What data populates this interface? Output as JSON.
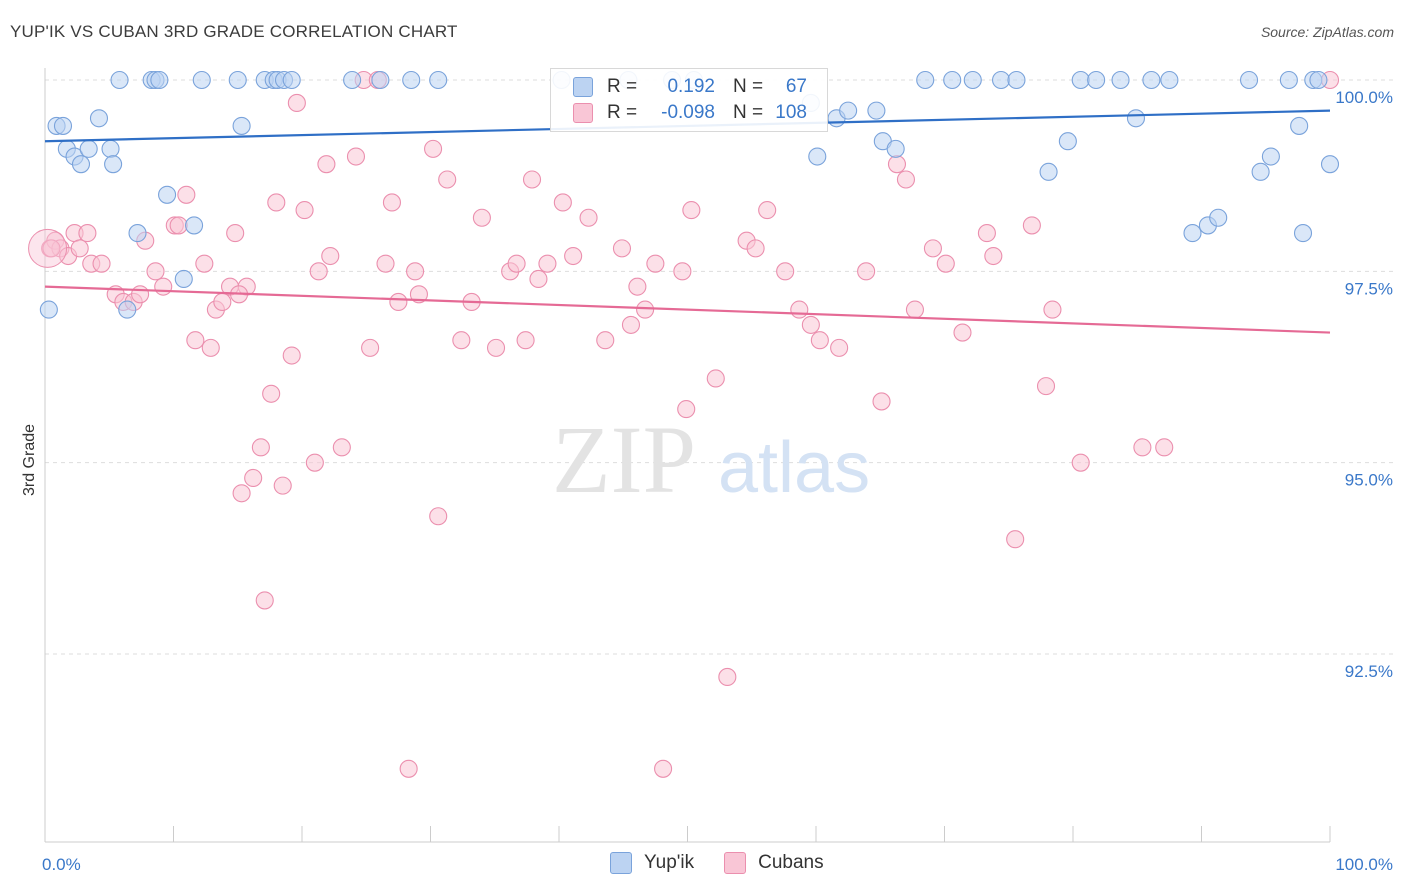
{
  "title": "YUP'IK VS CUBAN 3RD GRADE CORRELATION CHART",
  "source": "Source: ZipAtlas.com",
  "watermark": {
    "zip": "ZIP",
    "atlas": "atlas"
  },
  "legend_stats": {
    "rows": [
      {
        "r_label": "R =",
        "r_value": "0.192",
        "n_label": "N =",
        "n_value": "67"
      },
      {
        "r_label": "R =",
        "r_value": "-0.098",
        "n_label": "N =",
        "n_value": "108"
      }
    ]
  },
  "bottom_legend": [
    "Yup'ik",
    "Cubans"
  ],
  "colors": {
    "blue_fill": "#bcd3f2",
    "blue_stroke": "#7aa3db",
    "blue_line": "#2f6fc6",
    "pink_fill": "#f9c6d6",
    "pink_stroke": "#eb8fae",
    "pink_line": "#e56a95",
    "tick_color": "#3a78c9"
  },
  "chart_data": {
    "type": "scatter",
    "title": "YUP'IK VS CUBAN 3RD GRADE CORRELATION CHART",
    "xlabel": "",
    "ylabel": "3rd Grade",
    "xlim": [
      0,
      100
    ],
    "ylim": [
      90.0,
      101.0
    ],
    "x_tick_labels": [
      {
        "value": 0,
        "label": "0.0%"
      },
      {
        "value": 100,
        "label": "100.0%"
      }
    ],
    "y_ticks": [
      {
        "value": 92.5,
        "label": "92.5%"
      },
      {
        "value": 95.0,
        "label": "95.0%"
      },
      {
        "value": 97.5,
        "label": "97.5%"
      },
      {
        "value": 100.0,
        "label": "100.0%"
      }
    ],
    "grid": "horizontal dashed",
    "legend_position": "top-center",
    "series": [
      {
        "name": "Yup'ik",
        "trend": {
          "x": [
            0,
            100
          ],
          "y": [
            99.2,
            99.6
          ]
        },
        "points": [
          [
            0.3,
            97.0
          ],
          [
            0.9,
            99.4
          ],
          [
            1.4,
            99.4
          ],
          [
            1.7,
            99.1
          ],
          [
            2.3,
            99.0
          ],
          [
            2.8,
            98.9
          ],
          [
            3.4,
            99.1
          ],
          [
            4.2,
            99.5
          ],
          [
            5.1,
            99.1
          ],
          [
            5.3,
            98.9
          ],
          [
            5.8,
            100.0
          ],
          [
            6.4,
            97.0
          ],
          [
            7.2,
            98.0
          ],
          [
            8.3,
            100.0
          ],
          [
            8.6,
            100.0
          ],
          [
            8.9,
            100.0
          ],
          [
            9.5,
            98.5
          ],
          [
            10.8,
            97.4
          ],
          [
            11.6,
            98.1
          ],
          [
            12.2,
            100.0
          ],
          [
            15.0,
            100.0
          ],
          [
            15.3,
            99.4
          ],
          [
            17.1,
            100.0
          ],
          [
            17.8,
            100.0
          ],
          [
            18.1,
            100.0
          ],
          [
            18.6,
            100.0
          ],
          [
            19.2,
            100.0
          ],
          [
            23.9,
            100.0
          ],
          [
            26.1,
            100.0
          ],
          [
            28.5,
            100.0
          ],
          [
            30.6,
            100.0
          ],
          [
            40.2,
            100.0
          ],
          [
            45.4,
            100.0
          ],
          [
            48.8,
            100.0
          ],
          [
            50.5,
            100.0
          ],
          [
            59.6,
            99.7
          ],
          [
            60.1,
            99.0
          ],
          [
            61.6,
            99.5
          ],
          [
            62.5,
            99.6
          ],
          [
            64.7,
            99.6
          ],
          [
            65.2,
            99.2
          ],
          [
            66.2,
            99.1
          ],
          [
            68.5,
            100.0
          ],
          [
            70.6,
            100.0
          ],
          [
            72.2,
            100.0
          ],
          [
            74.4,
            100.0
          ],
          [
            75.6,
            100.0
          ],
          [
            78.1,
            98.8
          ],
          [
            79.6,
            99.2
          ],
          [
            80.6,
            100.0
          ],
          [
            81.8,
            100.0
          ],
          [
            83.7,
            100.0
          ],
          [
            84.9,
            99.5
          ],
          [
            86.1,
            100.0
          ],
          [
            87.5,
            100.0
          ],
          [
            89.3,
            98.0
          ],
          [
            90.5,
            98.1
          ],
          [
            91.3,
            98.2
          ],
          [
            93.7,
            100.0
          ],
          [
            94.6,
            98.8
          ],
          [
            95.4,
            99.0
          ],
          [
            96.8,
            100.0
          ],
          [
            97.6,
            99.4
          ],
          [
            97.9,
            98.0
          ],
          [
            98.7,
            100.0
          ],
          [
            99.1,
            100.0
          ],
          [
            100.0,
            98.9
          ]
        ]
      },
      {
        "name": "Cubans",
        "trend": {
          "x": [
            0,
            100
          ],
          "y": [
            97.3,
            96.7
          ]
        },
        "points": [
          [
            0.4,
            97.8
          ],
          [
            0.8,
            97.9
          ],
          [
            1.2,
            97.8
          ],
          [
            1.8,
            97.7
          ],
          [
            2.3,
            98.0
          ],
          [
            2.7,
            97.8
          ],
          [
            3.3,
            98.0
          ],
          [
            3.6,
            97.6
          ],
          [
            4.4,
            97.6
          ],
          [
            5.5,
            97.2
          ],
          [
            6.1,
            97.1
          ],
          [
            6.9,
            97.1
          ],
          [
            7.4,
            97.2
          ],
          [
            7.8,
            97.9
          ],
          [
            8.6,
            97.5
          ],
          [
            9.2,
            97.3
          ],
          [
            10.1,
            98.1
          ],
          [
            10.4,
            98.1
          ],
          [
            11.0,
            98.5
          ],
          [
            11.7,
            96.6
          ],
          [
            12.4,
            97.6
          ],
          [
            12.9,
            96.5
          ],
          [
            13.3,
            97.0
          ],
          [
            13.8,
            97.1
          ],
          [
            14.4,
            97.3
          ],
          [
            14.8,
            98.0
          ],
          [
            15.3,
            94.6
          ],
          [
            15.7,
            97.3
          ],
          [
            16.2,
            94.8
          ],
          [
            16.8,
            95.2
          ],
          [
            17.1,
            93.2
          ],
          [
            17.6,
            95.9
          ],
          [
            18.0,
            98.4
          ],
          [
            18.5,
            94.7
          ],
          [
            19.2,
            96.4
          ],
          [
            19.6,
            99.7
          ],
          [
            20.2,
            98.3
          ],
          [
            21.0,
            95.0
          ],
          [
            21.3,
            97.5
          ],
          [
            21.9,
            98.9
          ],
          [
            22.2,
            97.7
          ],
          [
            23.1,
            95.2
          ],
          [
            24.2,
            99.0
          ],
          [
            24.8,
            100.0
          ],
          [
            25.3,
            96.5
          ],
          [
            25.9,
            100.0
          ],
          [
            26.5,
            97.6
          ],
          [
            27.0,
            98.4
          ],
          [
            27.5,
            97.1
          ],
          [
            28.3,
            91.0
          ],
          [
            28.8,
            97.5
          ],
          [
            29.1,
            97.2
          ],
          [
            30.2,
            99.1
          ],
          [
            30.6,
            94.3
          ],
          [
            31.3,
            98.7
          ],
          [
            32.4,
            96.6
          ],
          [
            33.2,
            97.1
          ],
          [
            34.0,
            98.2
          ],
          [
            35.1,
            96.5
          ],
          [
            36.2,
            97.5
          ],
          [
            36.7,
            97.6
          ],
          [
            37.4,
            96.6
          ],
          [
            37.9,
            98.7
          ],
          [
            38.4,
            97.4
          ],
          [
            39.1,
            97.6
          ],
          [
            40.3,
            98.4
          ],
          [
            41.1,
            97.7
          ],
          [
            42.3,
            98.2
          ],
          [
            43.6,
            96.6
          ],
          [
            44.9,
            97.8
          ],
          [
            45.6,
            96.8
          ],
          [
            46.1,
            97.3
          ],
          [
            46.7,
            97.0
          ],
          [
            47.5,
            97.6
          ],
          [
            48.1,
            91.0
          ],
          [
            49.6,
            97.5
          ],
          [
            49.9,
            95.7
          ],
          [
            50.3,
            98.3
          ],
          [
            52.2,
            96.1
          ],
          [
            53.1,
            92.2
          ],
          [
            54.6,
            97.9
          ],
          [
            55.3,
            97.8
          ],
          [
            56.2,
            98.3
          ],
          [
            57.6,
            97.5
          ],
          [
            58.7,
            97.0
          ],
          [
            59.6,
            96.8
          ],
          [
            60.3,
            96.6
          ],
          [
            61.8,
            96.5
          ],
          [
            63.9,
            97.5
          ],
          [
            65.1,
            95.8
          ],
          [
            66.3,
            98.9
          ],
          [
            67.0,
            98.7
          ],
          [
            67.7,
            97.0
          ],
          [
            69.1,
            97.8
          ],
          [
            70.1,
            97.6
          ],
          [
            71.4,
            96.7
          ],
          [
            73.3,
            98.0
          ],
          [
            73.8,
            97.7
          ],
          [
            75.5,
            94.0
          ],
          [
            76.8,
            98.1
          ],
          [
            77.9,
            96.0
          ],
          [
            78.4,
            97.0
          ],
          [
            80.6,
            95.0
          ],
          [
            85.4,
            95.2
          ],
          [
            87.1,
            95.2
          ],
          [
            100.0,
            100.0
          ],
          [
            0.5,
            97.8
          ],
          [
            15.1,
            97.2
          ]
        ]
      }
    ]
  }
}
